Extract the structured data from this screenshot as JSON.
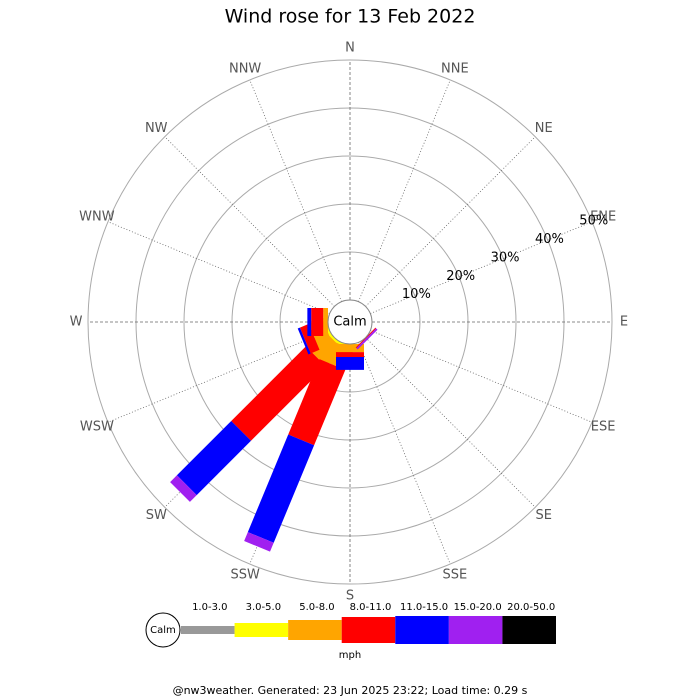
{
  "chart_data": {
    "type": "windrose",
    "title": "Wind rose for 13 Feb 2022",
    "directions": [
      "N",
      "NNE",
      "NE",
      "ENE",
      "E",
      "ESE",
      "SE",
      "SSE",
      "S",
      "SSW",
      "SW",
      "WSW",
      "W",
      "WNW",
      "NW",
      "NNW"
    ],
    "calm_label": "Calm",
    "unit": "mph",
    "rlim": [
      0,
      50
    ],
    "rticks": [
      {
        "value": 10,
        "label": "10%"
      },
      {
        "value": 20,
        "label": "20%"
      },
      {
        "value": 30,
        "label": "30%"
      },
      {
        "value": 40,
        "label": "40%"
      },
      {
        "value": 50,
        "label": "50%"
      }
    ],
    "series": [
      {
        "name": "1.0-3.0",
        "color": "#999999",
        "values": [
          0,
          0,
          0,
          0,
          0,
          0,
          0,
          0,
          0,
          0,
          0,
          0,
          0,
          0,
          0,
          0
        ]
      },
      {
        "name": "3.0-5.0",
        "color": "#ffff00",
        "values": [
          0,
          0,
          0,
          0,
          0,
          0,
          0,
          0,
          0,
          0.5,
          0.5,
          0.5,
          0,
          0,
          0,
          0
        ]
      },
      {
        "name": "5.0-8.0",
        "color": "#ffa500",
        "values": [
          0,
          0,
          0,
          0,
          0,
          0,
          0,
          0,
          1.7,
          4.5,
          5,
          3,
          1,
          0,
          0,
          0
        ]
      },
      {
        "name": "8.0-11.0",
        "color": "#ff0000",
        "values": [
          0,
          0,
          0,
          0,
          0,
          0,
          0.2,
          0,
          1,
          17,
          22,
          2,
          2.5,
          0,
          0,
          0
        ]
      },
      {
        "name": "11.0-15.0",
        "color": "#0000ff",
        "values": [
          0,
          0,
          0,
          0,
          0,
          0,
          0,
          0,
          2.7,
          22,
          16,
          0.5,
          0.8,
          0,
          0,
          0
        ]
      },
      {
        "name": "15.0-20.0",
        "color": "#a020f0",
        "values": [
          0,
          0,
          0,
          0,
          0,
          0,
          0.4,
          0,
          0,
          2,
          2,
          0,
          0,
          0,
          0,
          0
        ]
      },
      {
        "name": "20.0-50.0",
        "color": "#000000",
        "values": [
          0,
          0,
          0,
          0,
          0,
          0,
          0,
          0,
          0,
          0,
          0,
          0,
          0,
          0,
          0,
          0
        ]
      }
    ]
  },
  "footer": "@nw3weather. Generated: 23 Jun 2025 23:22; Load time: 0.29 s"
}
